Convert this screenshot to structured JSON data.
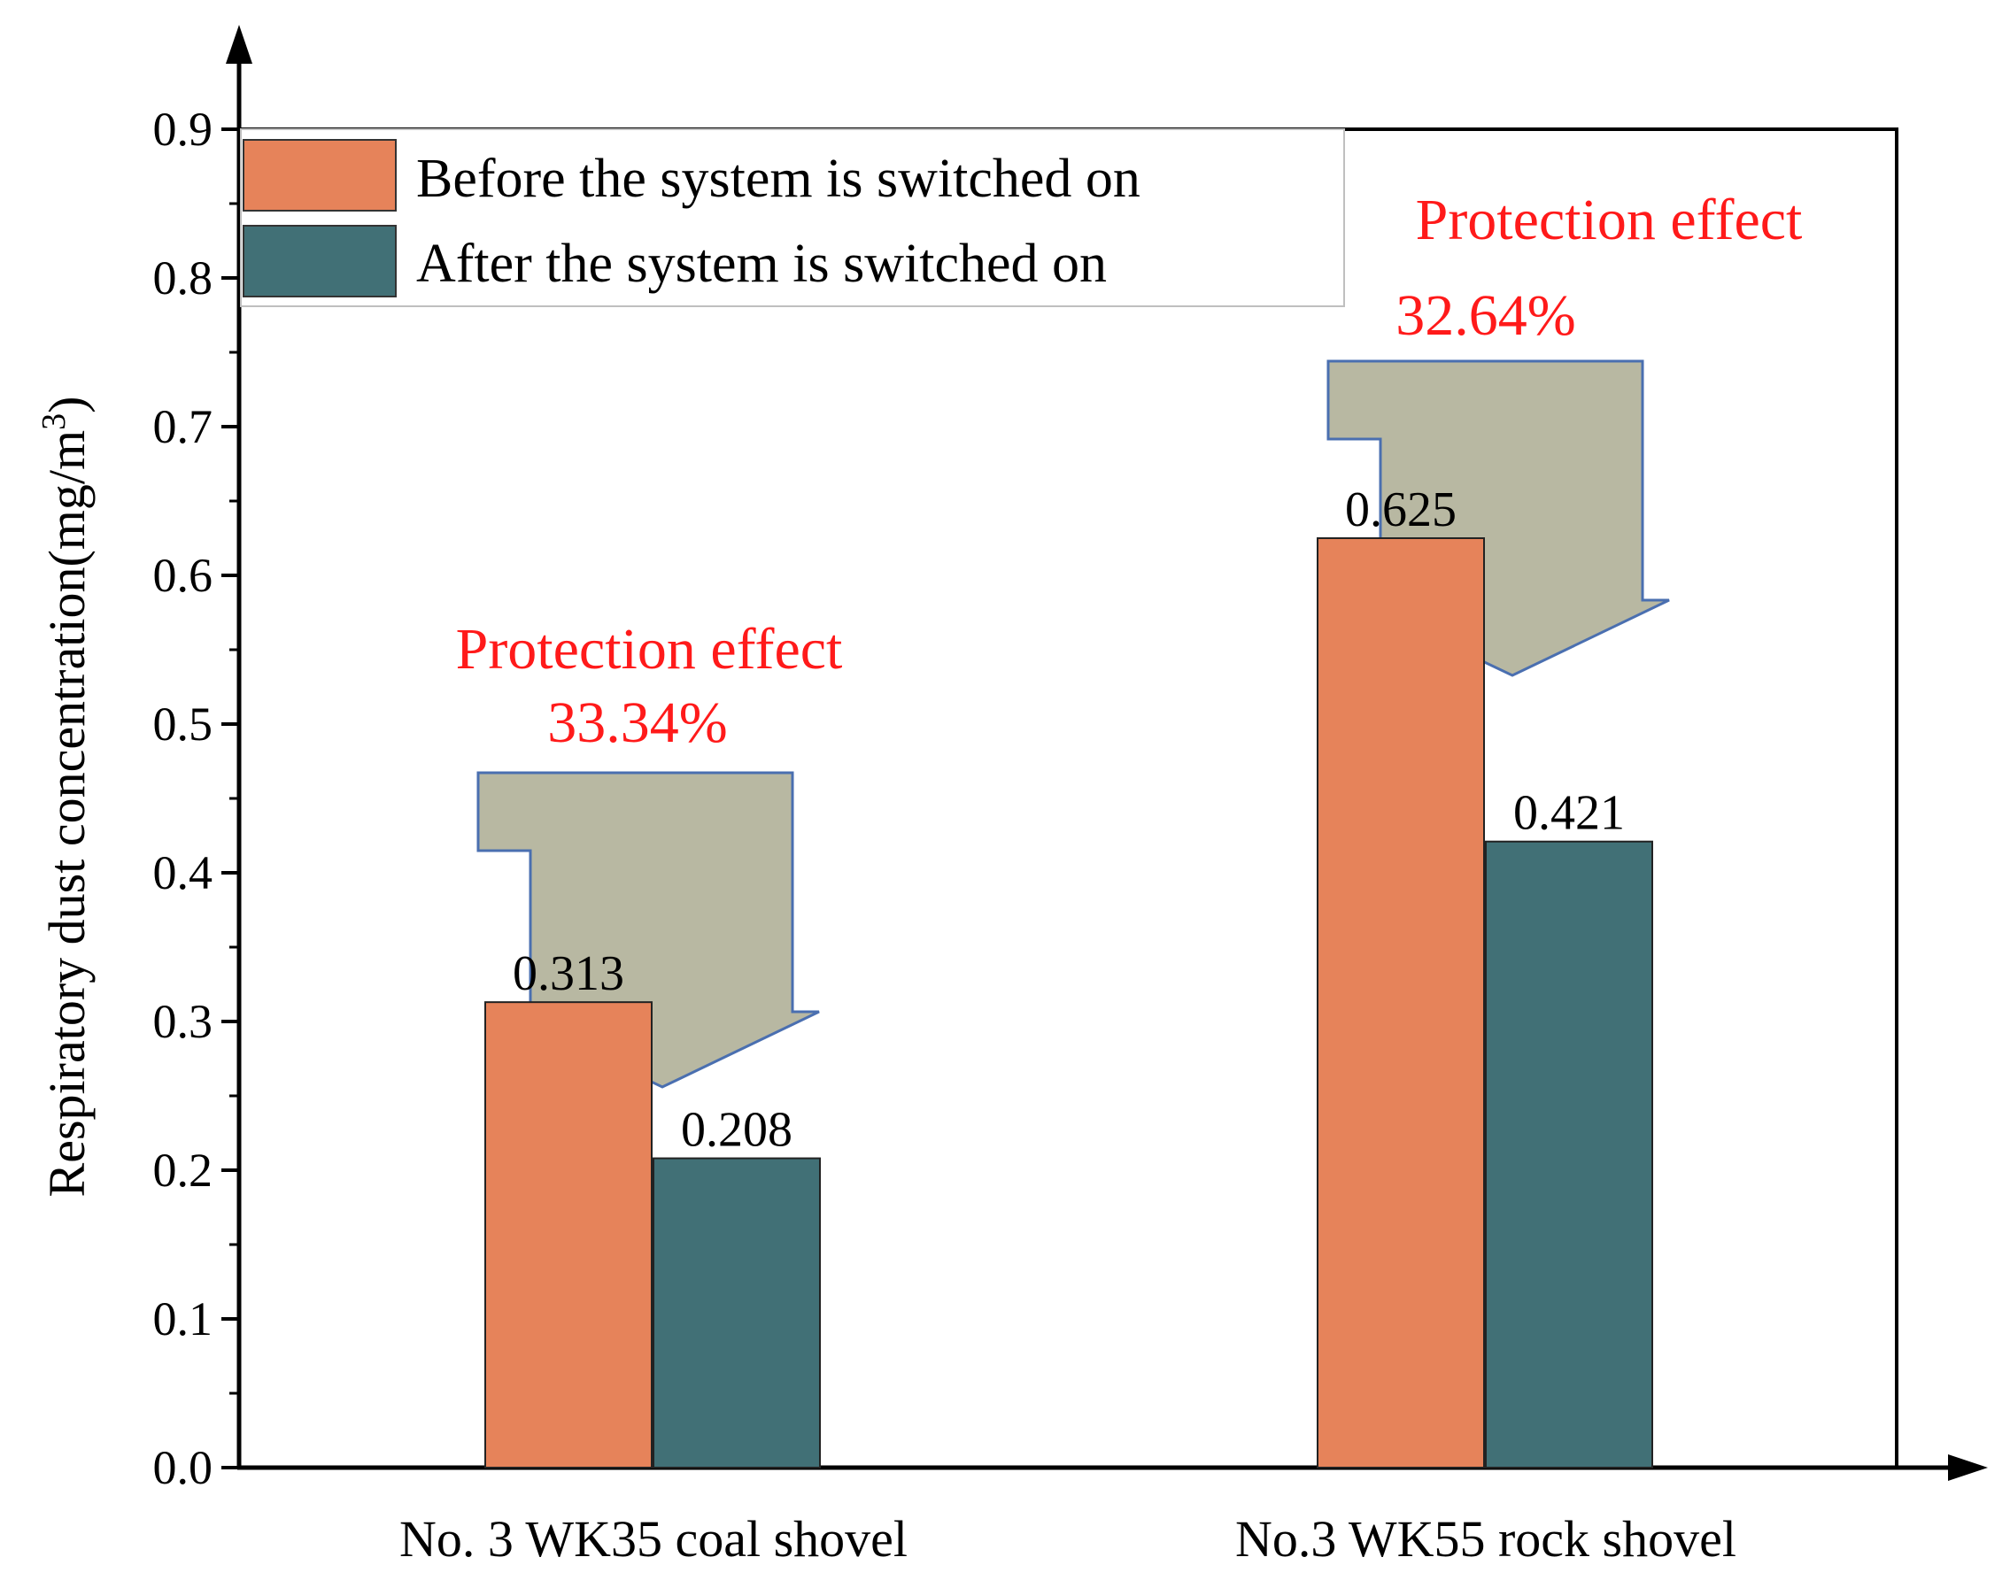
{
  "chart_data": {
    "type": "bar",
    "title": "",
    "xlabel": "",
    "ylabel": "Respiratory dust concentration(mg/m",
    "ylabel_superscript": "3",
    "ylabel_suffix": ")",
    "ylim": [
      0,
      0.9
    ],
    "yticks": [
      "0.0",
      "0.1",
      "0.2",
      "0.3",
      "0.4",
      "0.5",
      "0.6",
      "0.7",
      "0.8",
      "0.9"
    ],
    "categories": [
      "No. 3 WK35 coal shovel",
      "No.3 WK55 rock shovel"
    ],
    "series": [
      {
        "name": "Before the system is switched on",
        "color": "#e6835a",
        "values": [
          0.313,
          0.625
        ],
        "labels": [
          "0.313",
          "0.625"
        ]
      },
      {
        "name": "After the system is switched on",
        "color": "#417076",
        "values": [
          0.208,
          0.421
        ],
        "labels": [
          "0.208",
          "0.421"
        ]
      }
    ],
    "legend_position": "top-left",
    "annotations": [
      {
        "category": "No. 3 WK35 coal shovel",
        "title": "Protection effect",
        "value": "33.34%",
        "color": "#ff1a1a"
      },
      {
        "category": "No.3 WK55 rock shovel",
        "title": "Protection effect",
        "value": "32.64%",
        "color": "#ff1a1a"
      }
    ],
    "arrow_color": "#b8b8a2",
    "arrow_outline": "#4a6fb0",
    "grid": false
  }
}
